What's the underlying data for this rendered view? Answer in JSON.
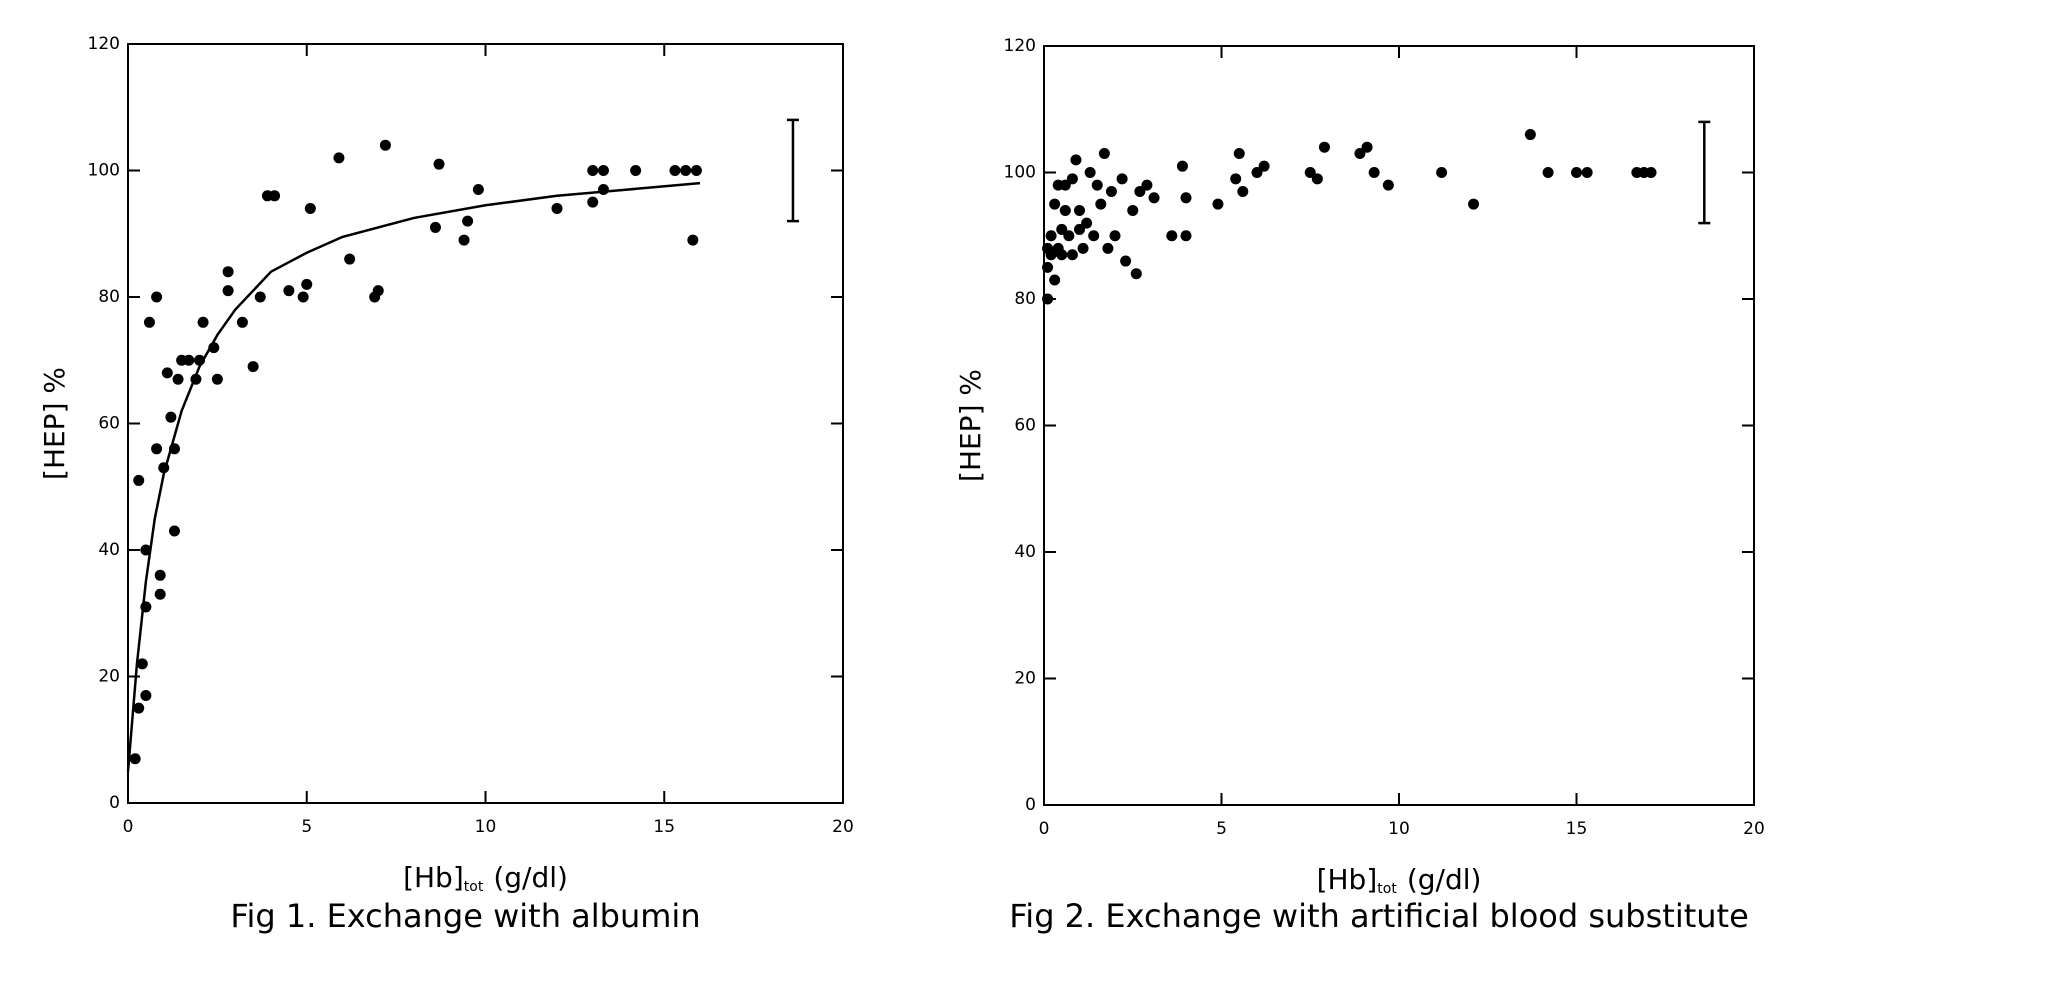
{
  "chart_data": [
    {
      "type": "scatter",
      "caption": "Fig 1.  Exchange with albumin",
      "x_label": "[Hb]",
      "x_label_sub": "tot",
      "x_label_unit": "(g/dl)",
      "y_label": "[HEP] %",
      "xlim": [
        0,
        20
      ],
      "xticks": [
        0,
        5,
        10,
        15,
        20
      ],
      "ylim": [
        0,
        120
      ],
      "yticks": [
        0,
        20,
        40,
        60,
        80,
        100,
        120
      ],
      "color": "#000000",
      "series": [
        {
          "type": "scatter",
          "color": "#000000",
          "x": [
            0.2,
            0.3,
            0.4,
            0.5,
            0.5,
            0.5,
            0.3,
            0.6,
            0.8,
            0.8,
            0.9,
            0.9,
            1.0,
            1.1,
            1.2,
            1.3,
            1.3,
            1.4,
            1.5,
            1.7,
            1.9,
            2.0,
            2.1,
            2.4,
            2.5,
            2.8,
            2.8,
            3.2,
            3.5,
            3.7,
            3.9,
            4.1,
            4.5,
            4.9,
            5.0,
            5.1,
            5.9,
            6.2,
            6.9,
            7.0,
            7.2,
            8.6,
            8.7,
            9.4,
            9.5,
            9.8,
            12.0,
            13.0,
            13.0,
            13.3,
            13.3,
            14.2,
            15.3,
            15.6,
            15.8,
            15.9
          ],
          "values": [
            7,
            15,
            22,
            17,
            31,
            40,
            51,
            76,
            80,
            56,
            36,
            33,
            53,
            68,
            61,
            56,
            43,
            67,
            70,
            70,
            67,
            70,
            76,
            72,
            67,
            81,
            84,
            76,
            69,
            80,
            96,
            96,
            81,
            80,
            82,
            94,
            102,
            86,
            80,
            81,
            104,
            91,
            101,
            89,
            92,
            97,
            94,
            100,
            95,
            100,
            97,
            100,
            100,
            100,
            89,
            100
          ]
        },
        {
          "type": "line",
          "color": "#000000",
          "x": [
            0,
            0.25,
            0.5,
            0.75,
            1,
            1.5,
            2,
            2.5,
            3,
            4,
            5,
            6,
            8,
            10,
            12,
            14,
            16
          ],
          "values": [
            5,
            22,
            35,
            45,
            52,
            62,
            69,
            74,
            78,
            84,
            87,
            89.5,
            92.5,
            94.5,
            96,
            97,
            98
          ]
        }
      ],
      "error_bar": {
        "x": 18.6,
        "value": 100,
        "error": 8
      }
    },
    {
      "type": "scatter",
      "caption": "Fig 2.  Exchange with artificial blood substitute",
      "x_label": "[Hb]",
      "x_label_sub": "tot",
      "x_label_unit": "(g/dl)",
      "y_label": "[HEP] %",
      "xlim": [
        0,
        20
      ],
      "xticks": [
        0,
        5,
        10,
        15,
        20
      ],
      "ylim": [
        0,
        120
      ],
      "yticks": [
        0,
        20,
        40,
        60,
        80,
        100,
        120
      ],
      "color": "#000000",
      "series": [
        {
          "type": "scatter",
          "color": "#000000",
          "x": [
            0.1,
            0.1,
            0.1,
            0.2,
            0.2,
            0.3,
            0.3,
            0.4,
            0.4,
            0.5,
            0.5,
            0.6,
            0.6,
            0.7,
            0.8,
            0.8,
            0.9,
            1.0,
            1.0,
            1.1,
            1.2,
            1.3,
            1.4,
            1.5,
            1.6,
            1.7,
            1.8,
            1.9,
            2.0,
            2.2,
            2.3,
            2.5,
            2.6,
            2.7,
            2.9,
            3.1,
            3.6,
            3.9,
            4.0,
            4.0,
            4.9,
            5.4,
            5.5,
            5.6,
            6.0,
            6.2,
            7.5,
            7.7,
            7.9,
            8.9,
            9.1,
            9.3,
            9.7,
            11.2,
            12.1,
            13.7,
            14.2,
            15.0,
            15.3,
            16.7,
            16.9,
            17.1
          ],
          "values": [
            80,
            85,
            88,
            90,
            87,
            83,
            95,
            88,
            98,
            91,
            87,
            94,
            98,
            90,
            87,
            99,
            102,
            91,
            94,
            88,
            92,
            100,
            90,
            98,
            95,
            103,
            88,
            97,
            90,
            99,
            86,
            94,
            84,
            97,
            98,
            96,
            90,
            101,
            96,
            90,
            95,
            99,
            103,
            97,
            100,
            101,
            100,
            99,
            104,
            103,
            104,
            100,
            98,
            100,
            95,
            106,
            100,
            100,
            100,
            100,
            100,
            100
          ]
        }
      ],
      "error_bar": {
        "x": 18.6,
        "value": 100,
        "error": 8
      }
    }
  ]
}
